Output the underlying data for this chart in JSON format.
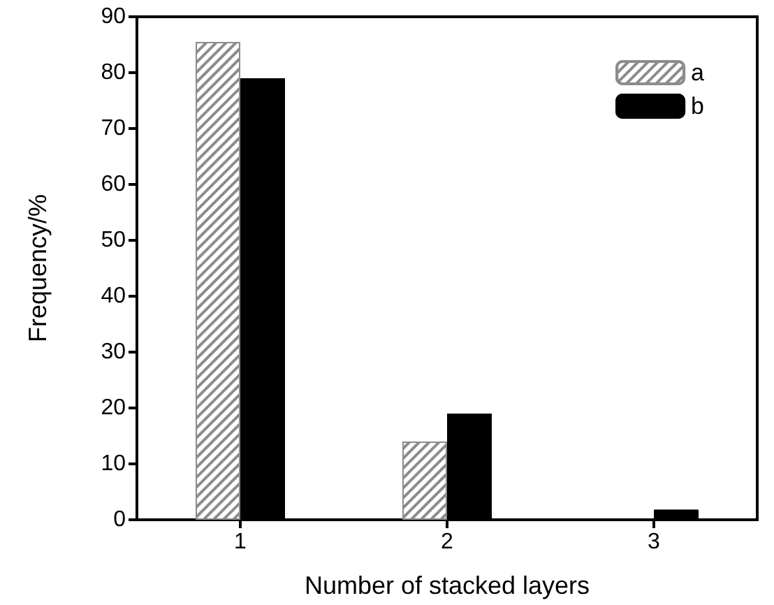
{
  "chart_data": {
    "type": "bar",
    "xlabel": "Number of stacked layers",
    "ylabel": "Frequency/%",
    "categories": [
      "1",
      "2",
      "3"
    ],
    "series": [
      {
        "name": "a",
        "color": "#8c8c8c",
        "values": [
          85.5,
          14,
          null
        ]
      },
      {
        "name": "b",
        "color": "#000000",
        "values": [
          79,
          19,
          1.8
        ]
      }
    ],
    "ylim": [
      0,
      90
    ],
    "yticks": [
      0,
      10,
      20,
      30,
      40,
      50,
      60,
      70,
      80,
      90
    ],
    "grid": false,
    "legend": "top right"
  }
}
